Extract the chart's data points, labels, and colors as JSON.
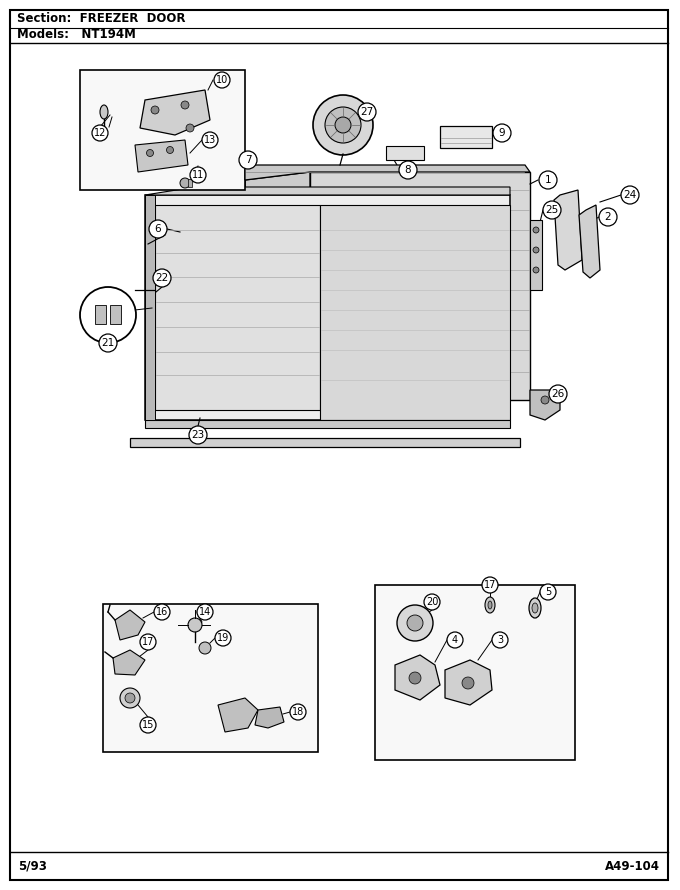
{
  "title_section": "Section:  FREEZER  DOOR",
  "title_models": "Models:   NT194M",
  "footer_left": "5/93",
  "footer_right": "A49-104",
  "bg_color": "#ffffff",
  "border_color": "#000000",
  "fig_width": 6.8,
  "fig_height": 8.9,
  "dpi": 100
}
